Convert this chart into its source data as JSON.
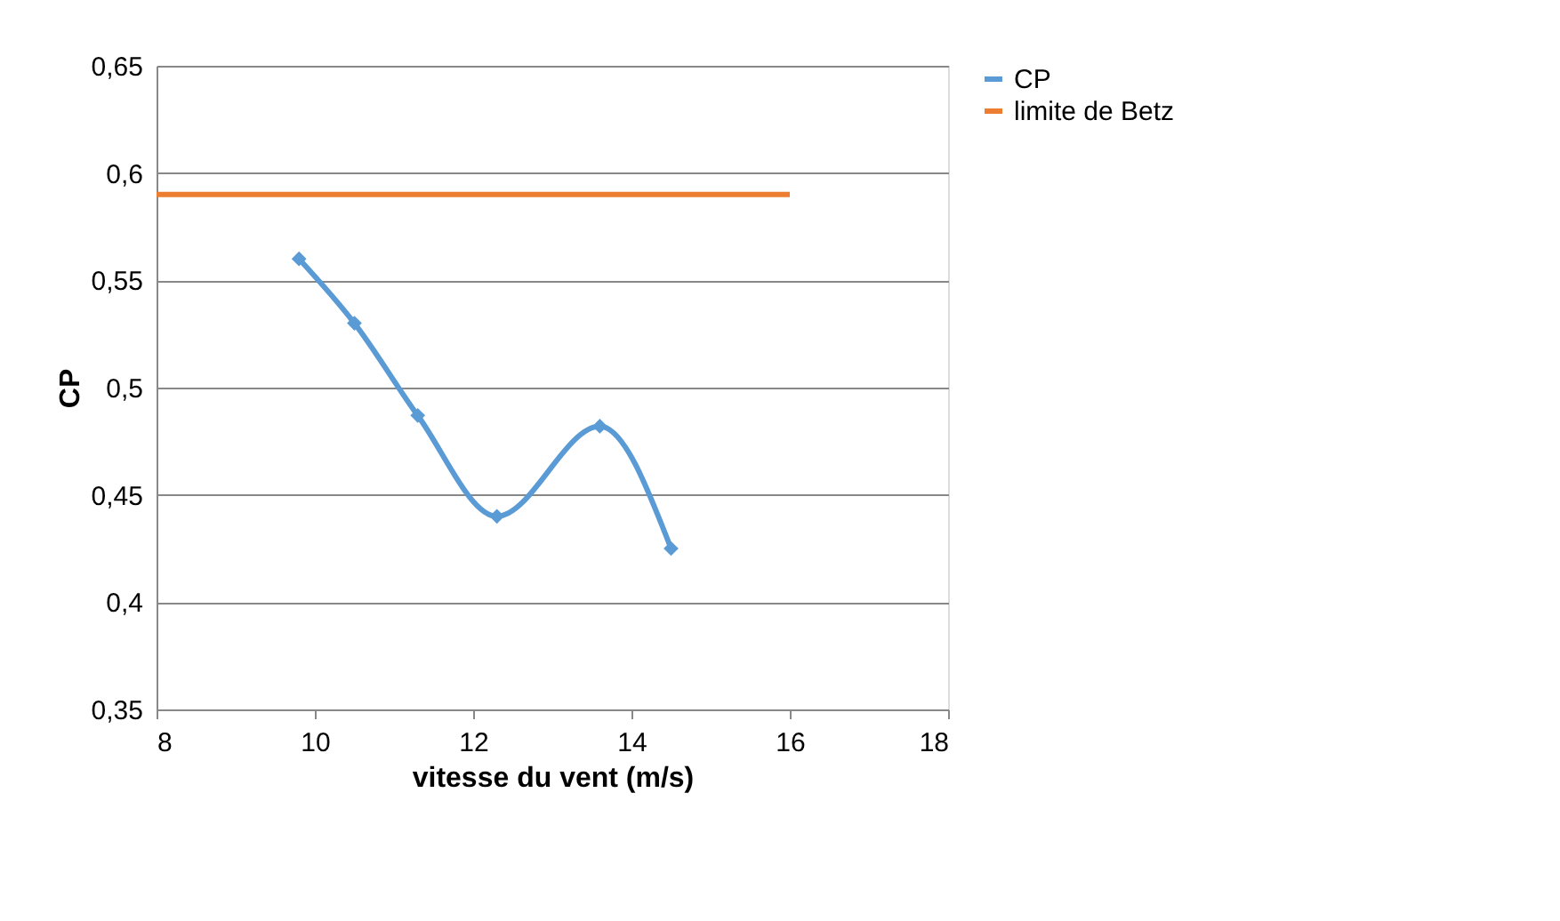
{
  "chart_data": {
    "type": "line",
    "xlabel": "vitesse du vent (m/s)",
    "ylabel": "CP",
    "series": [
      {
        "name": "CP",
        "color": "#5b9bd5",
        "marker": "diamond",
        "x": [
          9.8,
          10.5,
          11.3,
          12.3,
          13.6,
          14.5
        ],
        "values": [
          0.56,
          0.53,
          0.487,
          0.44,
          0.482,
          0.425
        ]
      },
      {
        "name": "limite de Betz",
        "color": "#ed7d31",
        "marker": "none",
        "x": [
          8,
          16
        ],
        "values": [
          0.59,
          0.59
        ]
      }
    ],
    "xlim": [
      8,
      18
    ],
    "xticks": [
      8,
      10,
      12,
      14,
      16,
      18
    ],
    "ylim": [
      0.35,
      0.65
    ],
    "yticks": [
      {
        "value": 0.35,
        "label": "0,35"
      },
      {
        "value": 0.4,
        "label": "0,4"
      },
      {
        "value": 0.45,
        "label": "0,45"
      },
      {
        "value": 0.5,
        "label": "0,5"
      },
      {
        "value": 0.55,
        "label": "0,55"
      },
      {
        "value": 0.6,
        "label": "0,6"
      },
      {
        "value": 0.65,
        "label": "0,65"
      }
    ],
    "grid": "y",
    "legend": "right",
    "line_style": "solid"
  }
}
